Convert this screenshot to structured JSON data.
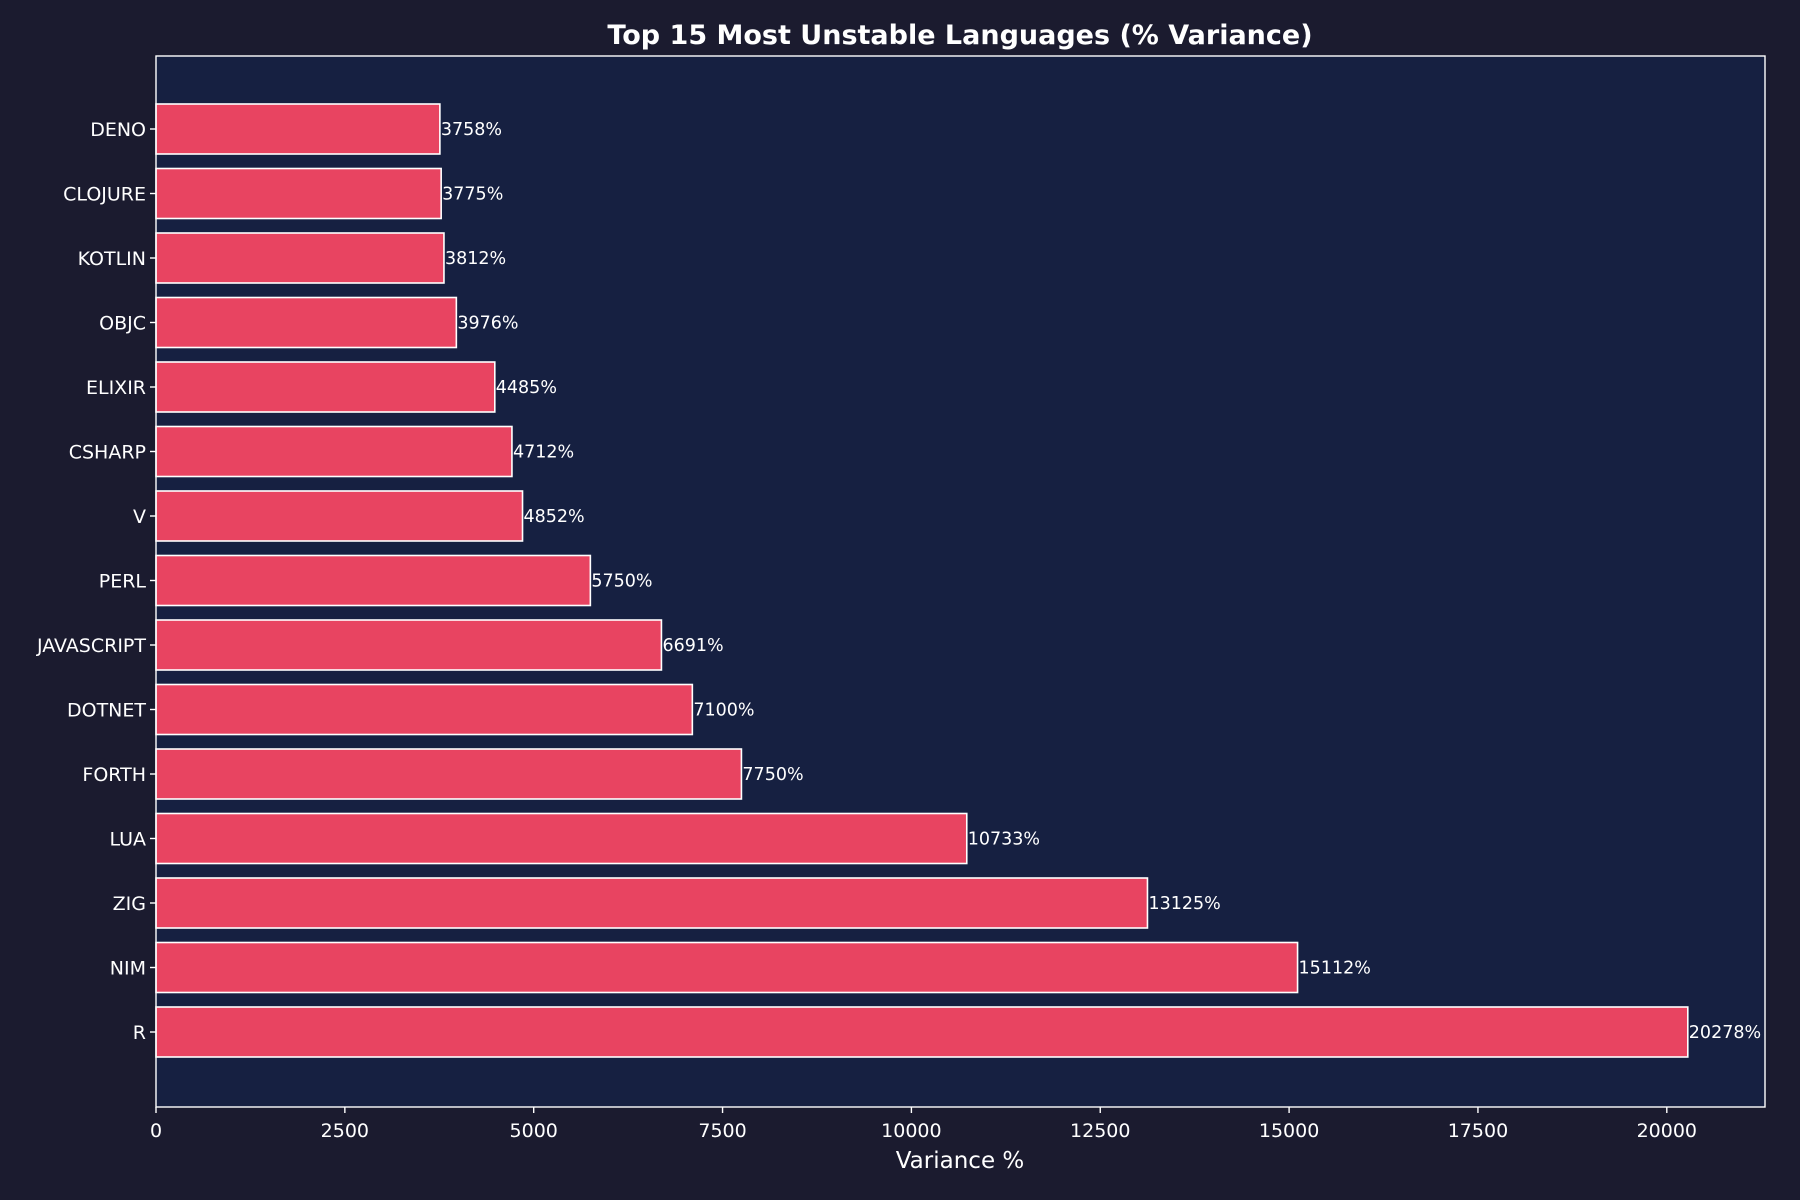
{
  "chart_data": {
    "type": "bar",
    "orientation": "horizontal",
    "title": "Top 15 Most Unstable Languages (% Variance)",
    "xlabel": "Variance %",
    "ylabel": "",
    "categories": [
      "R",
      "NIM",
      "ZIG",
      "LUA",
      "FORTH",
      "DOTNET",
      "JAVASCRIPT",
      "PERL",
      "V",
      "CSHARP",
      "ELIXIR",
      "OBJC",
      "KOTLIN",
      "CLOJURE",
      "DENO"
    ],
    "values": [
      20278,
      15112,
      13125,
      10733,
      7750,
      7100,
      6691,
      5750,
      4852,
      4712,
      4485,
      3976,
      3812,
      3775,
      3758
    ],
    "value_labels": [
      "20278%",
      "15112%",
      "13125%",
      "10733%",
      "7750%",
      "7100%",
      "6691%",
      "5750%",
      "4852%",
      "4712%",
      "4485%",
      "3976%",
      "3812%",
      "3775%",
      "3758%"
    ],
    "xlim": [
      0,
      21300
    ],
    "x_ticks": [
      0,
      2500,
      5000,
      7500,
      10000,
      12500,
      15000,
      17500,
      20000
    ],
    "x_tick_labels": [
      "0",
      "2500",
      "5000",
      "7500",
      "10000",
      "12500",
      "15000",
      "17500",
      "20000"
    ],
    "grid": false,
    "legend": "none",
    "colors": {
      "page_background": "#1b1b2f",
      "plot_background": "#162041",
      "bar_fill": "#e84461",
      "bar_edge": "#ffffff",
      "text": "#ffffff",
      "axis": "#ffffff"
    }
  }
}
